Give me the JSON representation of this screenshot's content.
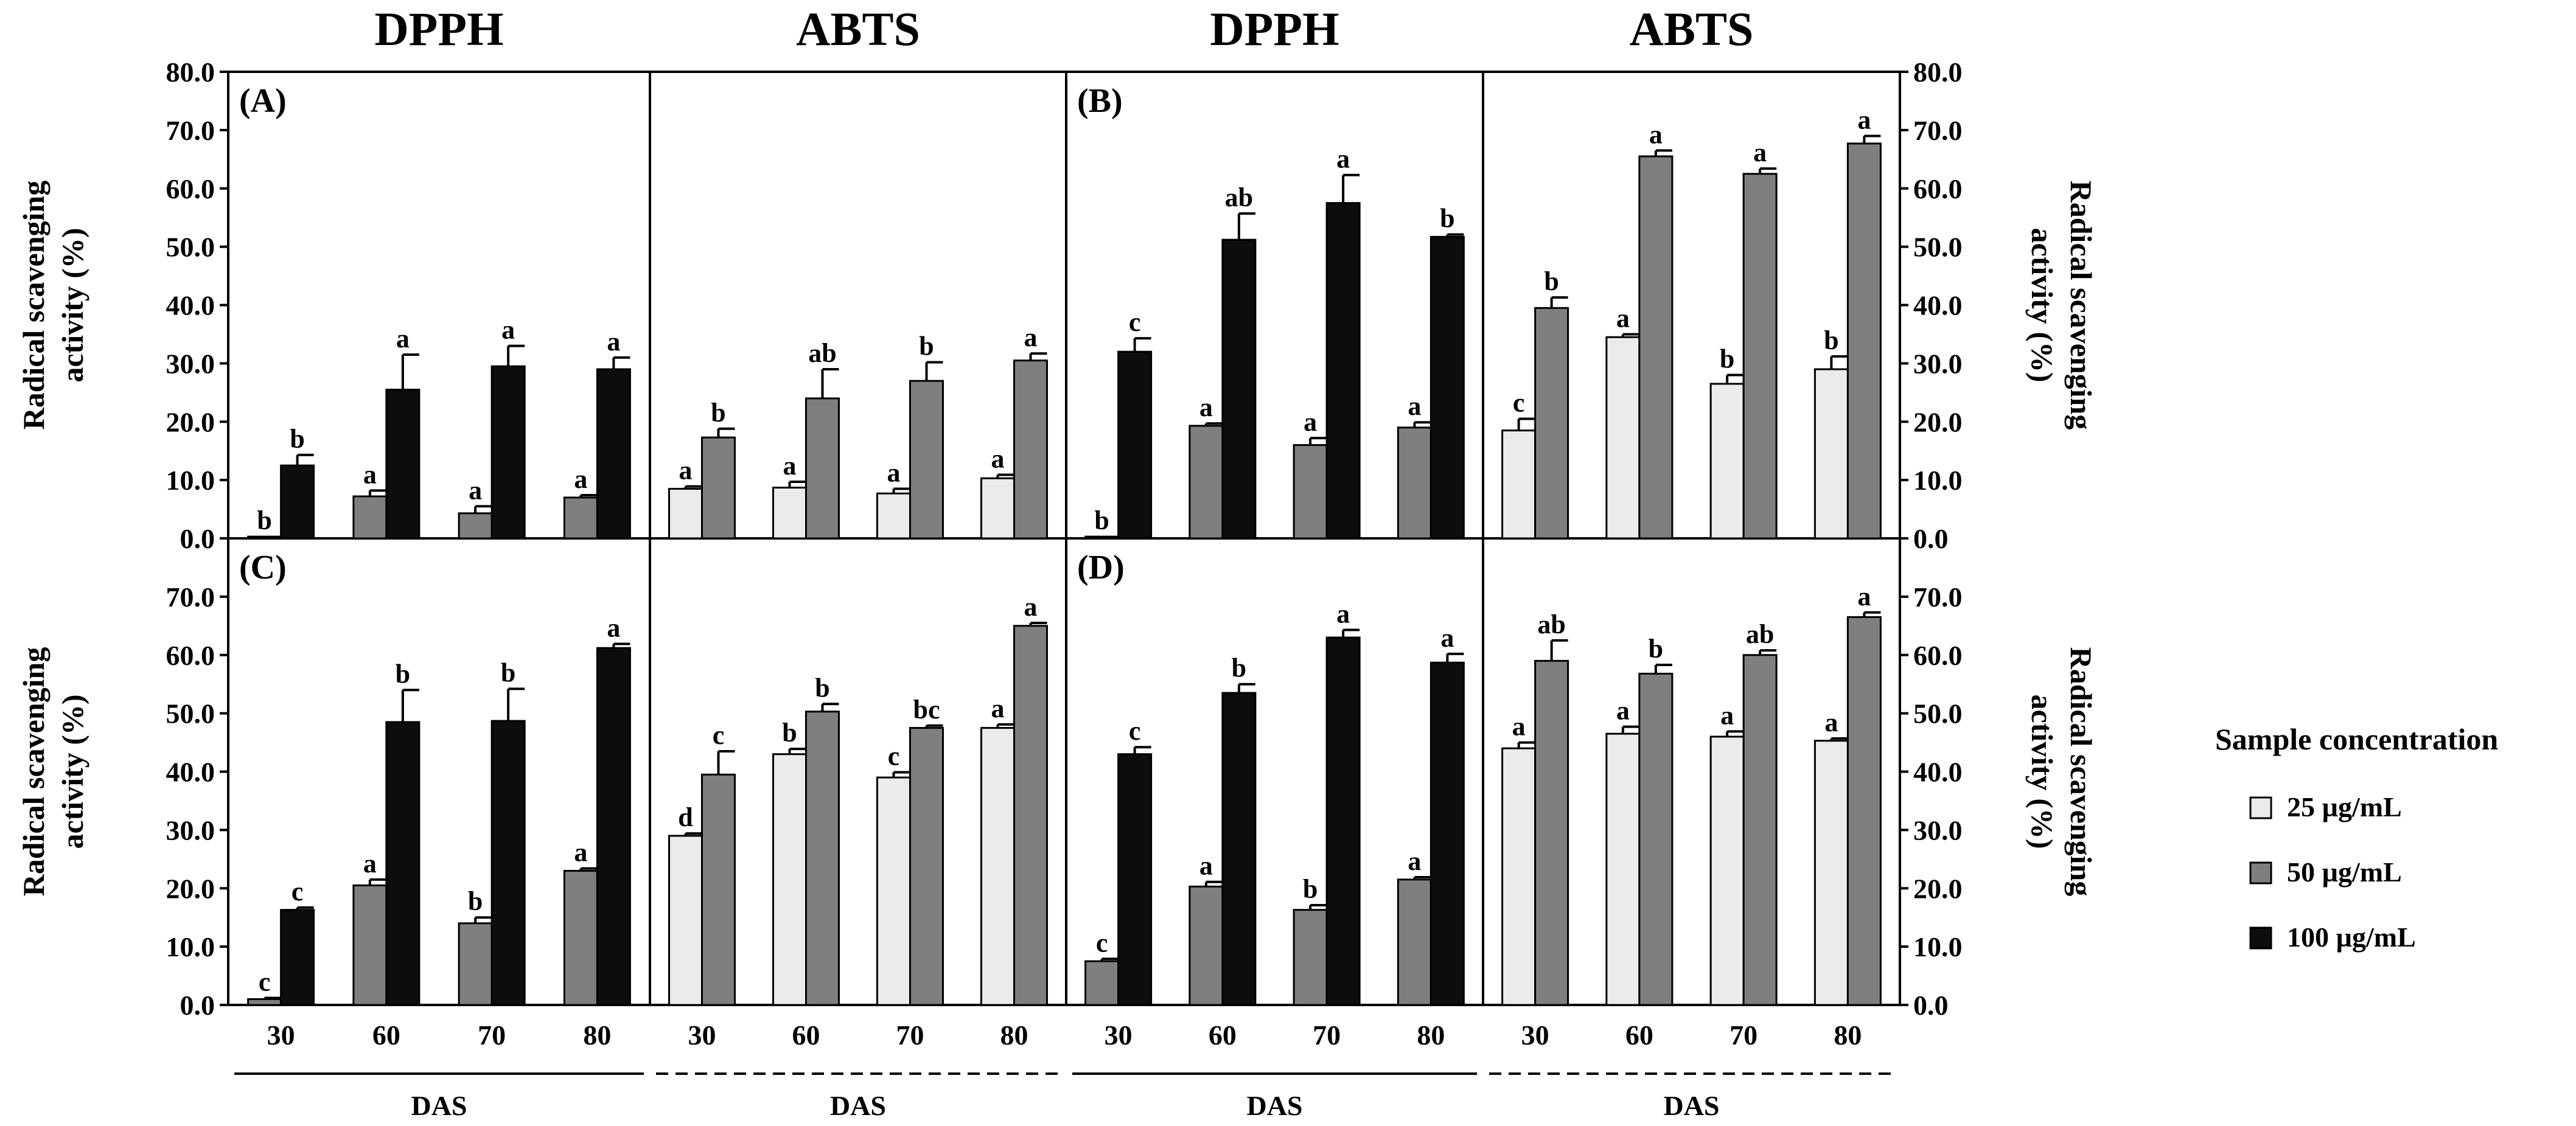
{
  "chart_data": {
    "type": "bar",
    "column_headers": [
      "DPPH",
      "ABTS",
      "DPPH",
      "ABTS"
    ],
    "ylabel": "Radical scavenging activity (%)",
    "ylabel_lines": [
      "Radical scavenging",
      "activity (%)"
    ],
    "ylim": [
      0,
      80
    ],
    "yticks": [
      "0.0",
      "10.0",
      "20.0",
      "30.0",
      "40.0",
      "50.0",
      "60.0",
      "70.0",
      "80.0"
    ],
    "lower_yticks": [
      "0.0",
      "10.0",
      "20.0",
      "30.0",
      "40.0",
      "50.0",
      "60.0",
      "70.0"
    ],
    "categories": [
      "30",
      "60",
      "70",
      "80"
    ],
    "xlabel": "DAS",
    "legend": {
      "title": "Sample concentration",
      "items": [
        {
          "label": "25 µg/mL",
          "color": "#ebebeb"
        },
        {
          "label": "50 µg/mL",
          "color": "#7f7f7f"
        },
        {
          "label": "100 µg/mL",
          "color": "#0d0d0d"
        }
      ]
    },
    "panels": [
      {
        "label": "(A)",
        "method": "DPPH",
        "series": [
          {
            "name": "25 µg/mL",
            "values": [
              null,
              null,
              null,
              null
            ],
            "errors": [
              0,
              0,
              0,
              0
            ],
            "letters": [
              "",
              "",
              "",
              ""
            ]
          },
          {
            "name": "50 µg/mL",
            "values": [
              0.3,
              7.2,
              4.3,
              7.0
            ],
            "errors": [
              0,
              1.0,
              1.2,
              0.4
            ],
            "letters": [
              "b",
              "a",
              "a",
              "a"
            ]
          },
          {
            "name": "100 µg/mL",
            "values": [
              12.5,
              25.5,
              29.5,
              29.0
            ],
            "errors": [
              1.8,
              6.0,
              3.5,
              2.0
            ],
            "letters": [
              "b",
              "a",
              "a",
              "a"
            ]
          }
        ]
      },
      {
        "label": "",
        "method": "ABTS",
        "series": [
          {
            "name": "25 µg/mL",
            "values": [
              8.5,
              8.7,
              7.7,
              10.3
            ],
            "errors": [
              0.4,
              1.0,
              0.8,
              0.6
            ],
            "letters": [
              "a",
              "a",
              "a",
              "a"
            ]
          },
          {
            "name": "50 µg/mL",
            "values": [
              17.3,
              24.0,
              27.0,
              30.5
            ],
            "errors": [
              1.5,
              5.0,
              3.2,
              1.2
            ],
            "letters": [
              "b",
              "ab",
              "b",
              "a"
            ]
          },
          {
            "name": "100 µg/mL",
            "values": [
              null,
              null,
              null,
              null
            ],
            "errors": [
              0,
              0,
              0,
              0
            ],
            "letters": [
              "",
              "",
              "",
              ""
            ]
          }
        ]
      },
      {
        "label": "(B)",
        "method": "DPPH",
        "series": [
          {
            "name": "25 µg/mL",
            "values": [
              null,
              null,
              null,
              null
            ],
            "errors": [
              0,
              0,
              0,
              0
            ],
            "letters": [
              "",
              "",
              "",
              ""
            ]
          },
          {
            "name": "50 µg/mL",
            "values": [
              0.3,
              19.3,
              16.0,
              19.0
            ],
            "errors": [
              0,
              0.4,
              1.2,
              0.9
            ],
            "letters": [
              "b",
              "a",
              "a",
              "a"
            ]
          },
          {
            "name": "100 µg/mL",
            "values": [
              32.0,
              51.2,
              57.5,
              51.7
            ],
            "errors": [
              2.3,
              4.5,
              4.8,
              0.4
            ],
            "letters": [
              "c",
              "ab",
              "a",
              "b"
            ]
          }
        ]
      },
      {
        "label": "",
        "method": "ABTS",
        "series": [
          {
            "name": "25 µg/mL",
            "values": [
              18.5,
              34.5,
              26.5,
              29.0
            ],
            "errors": [
              2.0,
              0.5,
              1.5,
              2.2
            ],
            "letters": [
              "c",
              "a",
              "b",
              "b"
            ]
          },
          {
            "name": "50 µg/mL",
            "values": [
              39.5,
              65.5,
              62.5,
              67.7
            ],
            "errors": [
              1.8,
              1.0,
              0.9,
              1.3
            ],
            "letters": [
              "b",
              "a",
              "a",
              "a"
            ]
          },
          {
            "name": "100 µg/mL",
            "values": [
              null,
              null,
              null,
              null
            ],
            "errors": [
              0,
              0,
              0,
              0
            ],
            "letters": [
              "",
              "",
              "",
              ""
            ]
          }
        ]
      },
      {
        "label": "(C)",
        "method": "DPPH",
        "series": [
          {
            "name": "25 µg/mL",
            "values": [
              null,
              null,
              null,
              null
            ],
            "errors": [
              0,
              0,
              0,
              0
            ],
            "letters": [
              "",
              "",
              "",
              ""
            ]
          },
          {
            "name": "50 µg/mL",
            "values": [
              1.0,
              20.5,
              14.0,
              23.0
            ],
            "errors": [
              0.2,
              1.0,
              1.0,
              0.4
            ],
            "letters": [
              "c",
              "a",
              "b",
              "a"
            ]
          },
          {
            "name": "100 µg/mL",
            "values": [
              16.3,
              48.5,
              48.7,
              61.2
            ],
            "errors": [
              0.4,
              5.5,
              5.5,
              0.7
            ],
            "letters": [
              "c",
              "b",
              "b",
              "a"
            ]
          }
        ]
      },
      {
        "label": "",
        "method": "ABTS",
        "series": [
          {
            "name": "25 µg/mL",
            "values": [
              29.0,
              43.0,
              39.0,
              47.5
            ],
            "errors": [
              0.4,
              0.9,
              0.9,
              0.6
            ],
            "letters": [
              "d",
              "b",
              "c",
              "a"
            ]
          },
          {
            "name": "50 µg/mL",
            "values": [
              39.5,
              50.3,
              47.5,
              65.0
            ],
            "errors": [
              4.0,
              1.3,
              0.4,
              0.5
            ],
            "letters": [
              "c",
              "b",
              "bc",
              "a"
            ]
          },
          {
            "name": "100 µg/mL",
            "values": [
              null,
              null,
              null,
              null
            ],
            "errors": [
              0,
              0,
              0,
              0
            ],
            "letters": [
              "",
              "",
              "",
              ""
            ]
          }
        ]
      },
      {
        "label": "(D)",
        "method": "DPPH",
        "series": [
          {
            "name": "25 µg/mL",
            "values": [
              null,
              null,
              null,
              null
            ],
            "errors": [
              0,
              0,
              0,
              0
            ],
            "letters": [
              "",
              "",
              "",
              ""
            ]
          },
          {
            "name": "50 µg/mL",
            "values": [
              7.5,
              20.3,
              16.3,
              21.5
            ],
            "errors": [
              0.4,
              0.8,
              0.8,
              0.4
            ],
            "letters": [
              "c",
              "a",
              "b",
              "a"
            ]
          },
          {
            "name": "100 µg/mL",
            "values": [
              43.0,
              53.5,
              63.0,
              58.7
            ],
            "errors": [
              1.2,
              1.5,
              1.3,
              1.5
            ],
            "letters": [
              "c",
              "b",
              "a",
              "a"
            ]
          }
        ]
      },
      {
        "label": "",
        "method": "ABTS",
        "series": [
          {
            "name": "25 µg/mL",
            "values": [
              44.0,
              46.5,
              46.0,
              45.3
            ],
            "errors": [
              1.0,
              1.2,
              0.9,
              0.4
            ],
            "letters": [
              "a",
              "a",
              "a",
              "a"
            ]
          },
          {
            "name": "50 µg/mL",
            "values": [
              59.0,
              56.8,
              60.0,
              66.5
            ],
            "errors": [
              3.5,
              1.5,
              0.8,
              0.8
            ],
            "letters": [
              "ab",
              "b",
              "ab",
              "a"
            ]
          },
          {
            "name": "100 µg/mL",
            "values": [
              null,
              null,
              null,
              null
            ],
            "errors": [
              0,
              0,
              0,
              0
            ],
            "letters": [
              "",
              "",
              "",
              ""
            ]
          }
        ]
      }
    ]
  }
}
